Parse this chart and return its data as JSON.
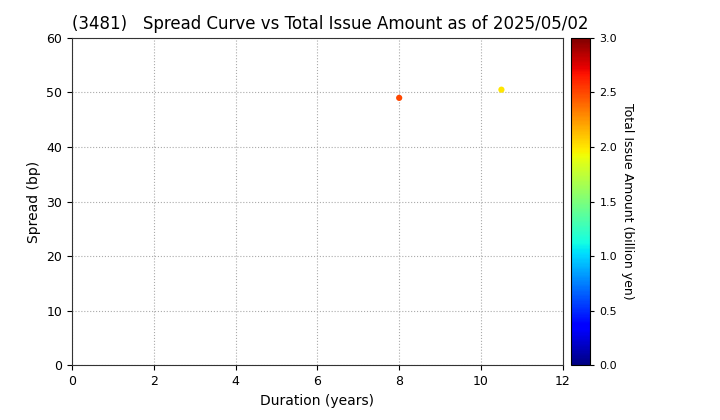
{
  "title": "(3481)   Spread Curve vs Total Issue Amount as of 2025/05/02",
  "points": [
    {
      "duration": 8.0,
      "spread": 49.0,
      "amount": 2.5
    },
    {
      "duration": 10.5,
      "spread": 50.5,
      "amount": 2.0
    }
  ],
  "xlabel": "Duration (years)",
  "ylabel": "Spread (bp)",
  "colorbar_label": "Total Issue Amount (billion yen)",
  "xlim": [
    0,
    12
  ],
  "ylim": [
    0,
    60
  ],
  "xticks": [
    0,
    2,
    4,
    6,
    8,
    10,
    12
  ],
  "yticks": [
    0,
    10,
    20,
    30,
    40,
    50,
    60
  ],
  "colorbar_ticks": [
    0.0,
    0.5,
    1.0,
    1.5,
    2.0,
    2.5,
    3.0
  ],
  "cmap_min": 0.0,
  "cmap_max": 3.0,
  "marker_size": 20,
  "grid_color": "#aaaaaa",
  "background_color": "#ffffff",
  "title_fontsize": 12
}
